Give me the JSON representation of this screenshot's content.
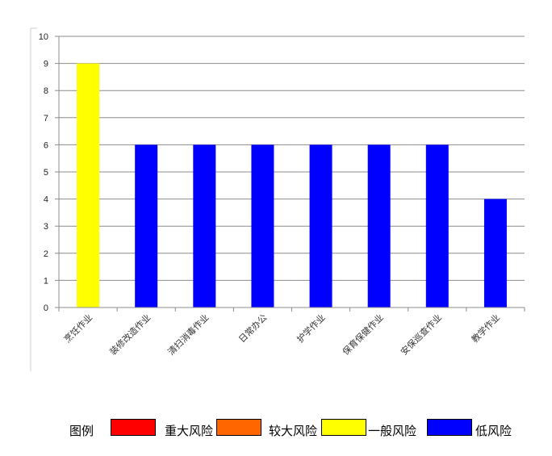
{
  "chart_data": {
    "type": "bar",
    "categories": [
      "烹饪作业",
      "装修改造作业",
      "清扫消毒作业",
      "日常办公",
      "护学作业",
      "保育保健作业",
      "安保巡查作业",
      "教学作业"
    ],
    "values": [
      9,
      6,
      6,
      6,
      6,
      6,
      6,
      4
    ],
    "bar_colors": [
      "#ffff00",
      "#0000ff",
      "#0000ff",
      "#0000ff",
      "#0000ff",
      "#0000ff",
      "#0000ff",
      "#0000ff"
    ],
    "ylim": [
      0,
      10
    ],
    "yticks": [
      0,
      1,
      2,
      3,
      4,
      5,
      6,
      7,
      8,
      9,
      10
    ],
    "grid": true,
    "legend_placement": "bottom"
  },
  "legend": {
    "title": "图例",
    "items": [
      {
        "label": "重大风险",
        "color": "#ff0000"
      },
      {
        "label": "较大风险",
        "color": "#ff6600"
      },
      {
        "label": "一般风险",
        "color": "#ffff00"
      },
      {
        "label": "低风险",
        "color": "#0000ff"
      }
    ]
  }
}
